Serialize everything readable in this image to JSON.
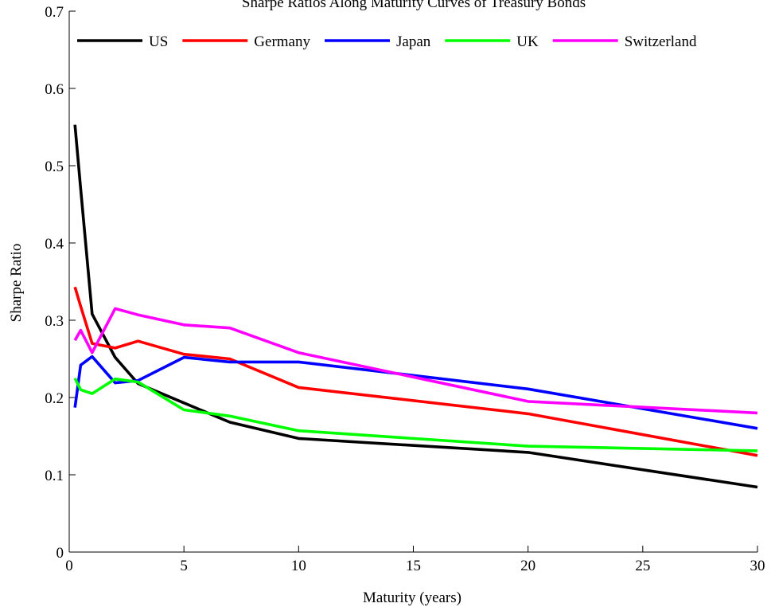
{
  "chart_data": {
    "type": "line",
    "title": "Sharpe Ratios Along Maturity Curves of Treasury Bonds",
    "xlabel": "Maturity (years)",
    "ylabel": "Sharpe Ratio",
    "xlim": [
      0,
      30
    ],
    "ylim": [
      0,
      0.7
    ],
    "xticks": [
      0,
      5,
      10,
      15,
      20,
      25,
      30
    ],
    "xtick_labels": [
      "0",
      "5",
      "10",
      "15",
      "20",
      "25",
      "30"
    ],
    "yticks": [
      0,
      0.1,
      0.2,
      0.3,
      0.4,
      0.5,
      0.6,
      0.7
    ],
    "ytick_labels": [
      "0",
      "0.1",
      "0.2",
      "0.3",
      "0.4",
      "0.5",
      "0.6",
      "0.7"
    ],
    "grid": false,
    "legend_position": "top",
    "series": [
      {
        "name": "US",
        "color": "#000000",
        "x": [
          0.25,
          0.5,
          1,
          2,
          3,
          5,
          7,
          10,
          20,
          30
        ],
        "y": [
          0.553,
          0.47,
          0.308,
          0.252,
          0.218,
          0.193,
          0.168,
          0.147,
          0.129,
          0.084
        ]
      },
      {
        "name": "Germany",
        "color": "#ff0000",
        "x": [
          0.25,
          0.5,
          1,
          2,
          3,
          5,
          7,
          10,
          20,
          30
        ],
        "y": [
          0.343,
          0.318,
          0.27,
          0.264,
          0.273,
          0.256,
          0.25,
          0.213,
          0.179,
          0.125
        ]
      },
      {
        "name": "Japan",
        "color": "#0000ff",
        "x": [
          0.25,
          0.5,
          1,
          2,
          3,
          5,
          7,
          10,
          20,
          30
        ],
        "y": [
          0.187,
          0.242,
          0.253,
          0.219,
          0.222,
          0.252,
          0.246,
          0.246,
          0.211,
          0.16
        ]
      },
      {
        "name": "UK",
        "color": "#00ff00",
        "x": [
          0.25,
          0.5,
          1,
          2,
          3,
          5,
          7,
          10,
          20,
          30
        ],
        "y": [
          0.225,
          0.21,
          0.205,
          0.224,
          0.22,
          0.184,
          0.176,
          0.157,
          0.137,
          0.131
        ]
      },
      {
        "name": "Switzerland",
        "color": "#ff00ff",
        "x": [
          0.25,
          0.5,
          1,
          2,
          3,
          5,
          7,
          10,
          20,
          30
        ],
        "y": [
          0.274,
          0.287,
          0.258,
          0.315,
          0.307,
          0.294,
          0.29,
          0.258,
          0.195,
          0.18
        ]
      }
    ]
  }
}
